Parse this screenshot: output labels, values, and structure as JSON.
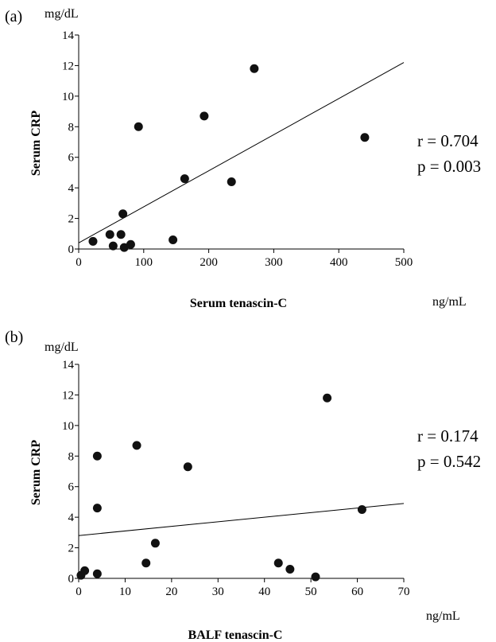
{
  "chart_data": [
    {
      "type": "scatter",
      "panel_label": "(a)",
      "xlabel": "Serum tenascin-C",
      "x_unit": "ng/mL",
      "ylabel": "Serum CRP",
      "y_unit": "mg/dL",
      "xlim": [
        0,
        500
      ],
      "ylim": [
        0,
        14
      ],
      "xticks": [
        0,
        100,
        200,
        300,
        400,
        500
      ],
      "yticks": [
        0,
        2,
        4,
        6,
        8,
        10,
        12,
        14
      ],
      "points": [
        {
          "x": 22,
          "y": 0.5
        },
        {
          "x": 48,
          "y": 0.95
        },
        {
          "x": 53,
          "y": 0.2
        },
        {
          "x": 65,
          "y": 0.95
        },
        {
          "x": 68,
          "y": 2.3
        },
        {
          "x": 70,
          "y": 0.1
        },
        {
          "x": 80,
          "y": 0.3
        },
        {
          "x": 92,
          "y": 8.0
        },
        {
          "x": 145,
          "y": 0.6
        },
        {
          "x": 163,
          "y": 4.6
        },
        {
          "x": 193,
          "y": 8.7
        },
        {
          "x": 235,
          "y": 4.4
        },
        {
          "x": 270,
          "y": 11.8
        },
        {
          "x": 440,
          "y": 7.3
        }
      ],
      "fit_line": {
        "x": [
          0,
          500
        ],
        "y": [
          0.4,
          12.2
        ]
      },
      "stats": {
        "r": "r = 0.704",
        "p": "p = 0.003"
      },
      "grid": false
    },
    {
      "type": "scatter",
      "panel_label": "(b)",
      "xlabel": "BALF tenascin-C",
      "x_unit": "ng/mL",
      "ylabel": "Serum CRP",
      "y_unit": "mg/dL",
      "xlim": [
        0,
        70
      ],
      "ylim": [
        0,
        14
      ],
      "xticks": [
        0,
        10,
        20,
        30,
        40,
        50,
        60,
        70
      ],
      "yticks": [
        0,
        2,
        4,
        6,
        8,
        10,
        12,
        14
      ],
      "points": [
        {
          "x": 0.5,
          "y": 0.2
        },
        {
          "x": 1.3,
          "y": 0.5
        },
        {
          "x": 4.0,
          "y": 0.3
        },
        {
          "x": 4.0,
          "y": 8.0
        },
        {
          "x": 4.0,
          "y": 4.6
        },
        {
          "x": 12.5,
          "y": 8.7
        },
        {
          "x": 14.5,
          "y": 1.0
        },
        {
          "x": 16.5,
          "y": 2.3
        },
        {
          "x": 23.5,
          "y": 7.3
        },
        {
          "x": 43.0,
          "y": 1.0
        },
        {
          "x": 45.5,
          "y": 0.6
        },
        {
          "x": 51.0,
          "y": 0.1
        },
        {
          "x": 53.5,
          "y": 11.8
        },
        {
          "x": 61.0,
          "y": 4.5
        }
      ],
      "fit_line": {
        "x": [
          0,
          70
        ],
        "y": [
          2.8,
          4.9
        ]
      },
      "stats": {
        "r": "r = 0.174",
        "p": "p = 0.542"
      },
      "grid": false
    }
  ]
}
